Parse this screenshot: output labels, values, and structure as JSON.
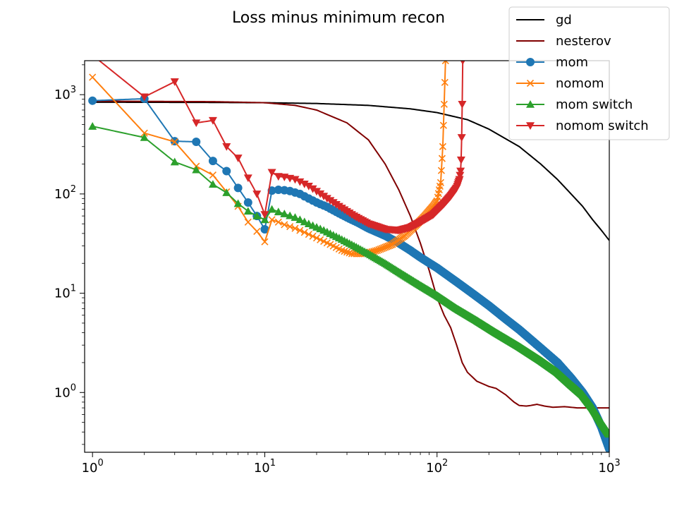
{
  "chart_data": {
    "type": "line",
    "title": "Loss minus minimum recon",
    "xlabel": "",
    "ylabel": "",
    "xscale": "log",
    "yscale": "log",
    "xlim": [
      0.9,
      1000
    ],
    "ylim": [
      0.25,
      2200
    ],
    "x_ticks": [
      {
        "value": 1,
        "base": "10",
        "exp": "0"
      },
      {
        "value": 10,
        "base": "10",
        "exp": "1"
      },
      {
        "value": 100,
        "base": "10",
        "exp": "2"
      },
      {
        "value": 1000,
        "base": "10",
        "exp": "3"
      }
    ],
    "y_ticks": [
      {
        "value": 1,
        "base": "10",
        "exp": "0"
      },
      {
        "value": 10,
        "base": "10",
        "exp": "1"
      },
      {
        "value": 100,
        "base": "10",
        "exp": "2"
      },
      {
        "value": 1000,
        "base": "10",
        "exp": "3"
      }
    ],
    "grid": false,
    "legend_position": "top-right",
    "series": [
      {
        "name": "gd",
        "color": "#000000",
        "marker": "none",
        "points": [
          [
            1,
            840
          ],
          [
            5,
            835
          ],
          [
            10,
            830
          ],
          [
            20,
            815
          ],
          [
            40,
            780
          ],
          [
            70,
            720
          ],
          [
            100,
            660
          ],
          [
            150,
            560
          ],
          [
            200,
            450
          ],
          [
            300,
            300
          ],
          [
            400,
            200
          ],
          [
            500,
            140
          ],
          [
            600,
            100
          ],
          [
            700,
            75
          ],
          [
            800,
            55
          ],
          [
            900,
            43
          ],
          [
            1000,
            34
          ]
        ]
      },
      {
        "name": "nesterov",
        "color": "#800000",
        "marker": "none",
        "points": [
          [
            1,
            860
          ],
          [
            5,
            850
          ],
          [
            10,
            830
          ],
          [
            15,
            780
          ],
          [
            20,
            700
          ],
          [
            30,
            520
          ],
          [
            40,
            350
          ],
          [
            50,
            200
          ],
          [
            60,
            110
          ],
          [
            70,
            60
          ],
          [
            80,
            32
          ],
          [
            90,
            17
          ],
          [
            100,
            9
          ],
          [
            110,
            6
          ],
          [
            120,
            4.5
          ],
          [
            130,
            3
          ],
          [
            140,
            2
          ],
          [
            150,
            1.6
          ],
          [
            170,
            1.3
          ],
          [
            200,
            1.15
          ],
          [
            220,
            1.1
          ],
          [
            250,
            0.95
          ],
          [
            280,
            0.8
          ],
          [
            300,
            0.74
          ],
          [
            330,
            0.73
          ],
          [
            350,
            0.74
          ],
          [
            380,
            0.76
          ],
          [
            420,
            0.73
          ],
          [
            470,
            0.71
          ],
          [
            550,
            0.72
          ],
          [
            650,
            0.7
          ],
          [
            800,
            0.7
          ],
          [
            1000,
            0.7
          ]
        ]
      },
      {
        "name": "mom",
        "color": "#1f77b4",
        "marker": "circle",
        "points": [
          [
            1,
            870
          ],
          [
            2,
            910
          ],
          [
            3,
            340
          ],
          [
            4,
            335
          ],
          [
            5,
            215
          ],
          [
            6,
            170
          ],
          [
            7,
            115
          ],
          [
            8,
            82
          ],
          [
            9,
            60
          ],
          [
            10,
            44
          ],
          [
            11,
            108
          ],
          [
            12,
            110
          ],
          [
            13,
            109
          ],
          [
            14,
            107
          ],
          [
            16,
            100
          ],
          [
            18,
            90
          ],
          [
            20,
            82
          ],
          [
            23,
            74
          ],
          [
            26,
            66
          ],
          [
            30,
            58
          ],
          [
            35,
            51
          ],
          [
            40,
            45
          ],
          [
            50,
            38
          ],
          [
            60,
            32
          ],
          [
            70,
            27
          ],
          [
            80,
            23
          ],
          [
            100,
            18
          ],
          [
            130,
            13
          ],
          [
            160,
            10
          ],
          [
            200,
            7.5
          ],
          [
            250,
            5.5
          ],
          [
            300,
            4.3
          ],
          [
            400,
            2.8
          ],
          [
            500,
            2.0
          ],
          [
            600,
            1.4
          ],
          [
            700,
            1.0
          ],
          [
            800,
            0.7
          ],
          [
            900,
            0.45
          ],
          [
            1000,
            0.27
          ]
        ]
      },
      {
        "name": "nomom",
        "color": "#ff7f0e",
        "marker": "x",
        "points": [
          [
            1,
            1500
          ],
          [
            2,
            410
          ],
          [
            3,
            335
          ],
          [
            4,
            190
          ],
          [
            5,
            155
          ],
          [
            6,
            105
          ],
          [
            7,
            75
          ],
          [
            8,
            52
          ],
          [
            9,
            42
          ],
          [
            10,
            33
          ],
          [
            11,
            55
          ],
          [
            12,
            52
          ],
          [
            13,
            49
          ],
          [
            15,
            45
          ],
          [
            17,
            41
          ],
          [
            20,
            36
          ],
          [
            24,
            31
          ],
          [
            28,
            27
          ],
          [
            32,
            25
          ],
          [
            38,
            25
          ],
          [
            45,
            27
          ],
          [
            55,
            31
          ],
          [
            65,
            38
          ],
          [
            75,
            48
          ],
          [
            85,
            60
          ],
          [
            95,
            75
          ],
          [
            100,
            85
          ],
          [
            105,
            130
          ],
          [
            108,
            300
          ],
          [
            110,
            800
          ],
          [
            112,
            2200
          ]
        ]
      },
      {
        "name": "mom switch",
        "color": "#2ca02c",
        "marker": "triangle-up",
        "points": [
          [
            1,
            480
          ],
          [
            2,
            370
          ],
          [
            3,
            210
          ],
          [
            4,
            175
          ],
          [
            5,
            125
          ],
          [
            6,
            103
          ],
          [
            7,
            80
          ],
          [
            8,
            67
          ],
          [
            9,
            60
          ],
          [
            10,
            55
          ],
          [
            11,
            70
          ],
          [
            12,
            66
          ],
          [
            13,
            63
          ],
          [
            15,
            58
          ],
          [
            18,
            50
          ],
          [
            22,
            43
          ],
          [
            27,
            36
          ],
          [
            33,
            30
          ],
          [
            40,
            25
          ],
          [
            50,
            20
          ],
          [
            65,
            15
          ],
          [
            80,
            12
          ],
          [
            100,
            9.5
          ],
          [
            130,
            7
          ],
          [
            170,
            5.3
          ],
          [
            220,
            4
          ],
          [
            300,
            2.9
          ],
          [
            400,
            2.1
          ],
          [
            500,
            1.6
          ],
          [
            600,
            1.2
          ],
          [
            700,
            0.95
          ],
          [
            800,
            0.7
          ],
          [
            900,
            0.5
          ],
          [
            1000,
            0.38
          ]
        ]
      },
      {
        "name": "nomom switch",
        "color": "#d62728",
        "marker": "triangle-down",
        "points": [
          [
            0.8,
            3200
          ],
          [
            1,
            2500
          ],
          [
            2,
            950
          ],
          [
            3,
            1350
          ],
          [
            4,
            520
          ],
          [
            5,
            550
          ],
          [
            6,
            300
          ],
          [
            7,
            230
          ],
          [
            8,
            145
          ],
          [
            9,
            100
          ],
          [
            10,
            62
          ],
          [
            11,
            165
          ],
          [
            12,
            150
          ],
          [
            13,
            148
          ],
          [
            15,
            140
          ],
          [
            18,
            120
          ],
          [
            22,
            95
          ],
          [
            27,
            75
          ],
          [
            33,
            60
          ],
          [
            40,
            50
          ],
          [
            50,
            44
          ],
          [
            60,
            43
          ],
          [
            70,
            46
          ],
          [
            80,
            52
          ],
          [
            95,
            62
          ],
          [
            110,
            80
          ],
          [
            120,
            95
          ],
          [
            130,
            115
          ],
          [
            135,
            140
          ],
          [
            137,
            170
          ],
          [
            138,
            220
          ],
          [
            139,
            370
          ],
          [
            140,
            800
          ],
          [
            141,
            2200
          ]
        ]
      }
    ]
  }
}
